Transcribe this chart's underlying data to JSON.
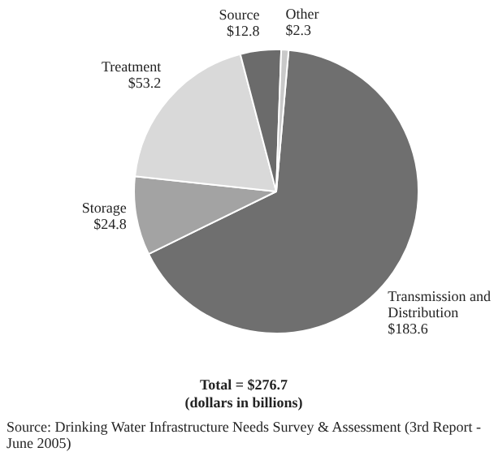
{
  "chart_data": {
    "type": "pie",
    "categories": [
      "Transmission and Distribution",
      "Storage",
      "Treatment",
      "Source",
      "Other"
    ],
    "values": [
      183.6,
      24.8,
      53.2,
      12.8,
      2.3
    ],
    "value_labels": [
      "$183.6",
      "$24.8",
      "$53.2",
      "$12.8",
      "$2.3"
    ],
    "colors": [
      "#6f6f6f",
      "#a3a3a3",
      "#d9d9d9",
      "#6b6b6b",
      "#c9c9c9"
    ],
    "legend": false,
    "annotations": [
      "Total = $276.7",
      "(dollars in billions)",
      "Source: Drinking Water Infrastructure Needs Survey & Assessment (3rd Report - June 2005)"
    ]
  }
}
